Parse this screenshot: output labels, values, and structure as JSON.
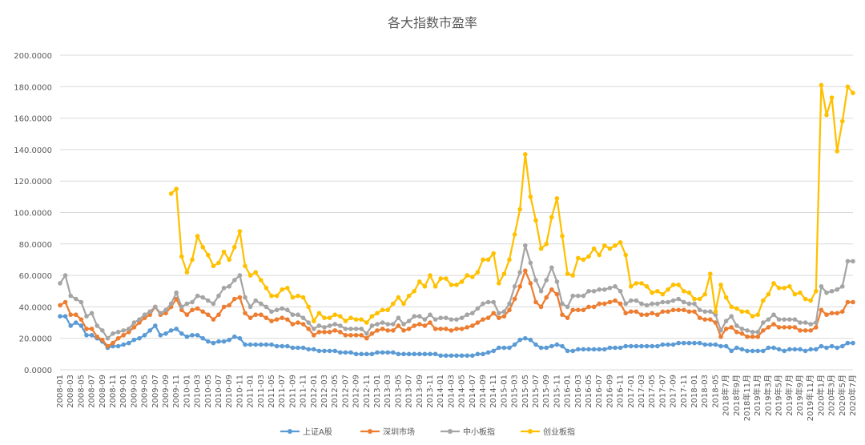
{
  "chart_data": {
    "type": "line",
    "title": "各大指数市盈率",
    "categories": [
      "2008-01",
      null,
      "2008-03",
      null,
      "2008-05",
      null,
      "2008-07",
      null,
      "2008-09",
      null,
      "2008-11",
      null,
      "2009-01",
      null,
      "2009-03",
      null,
      "2009-05",
      null,
      "2009-07",
      null,
      "2009-09",
      null,
      "2009-11",
      null,
      "2010-01",
      null,
      "2010-03",
      null,
      "2010-05",
      null,
      "2010-07",
      null,
      "2010-09",
      null,
      "2010-11",
      null,
      "2011-01",
      null,
      "2011-03",
      null,
      "2011-05",
      null,
      "2011-07",
      null,
      "2011-09",
      null,
      "2011-11",
      null,
      "2012-01",
      null,
      "2012-03",
      null,
      "2012-05",
      null,
      "2012-07",
      null,
      "2012-09",
      null,
      "2012-11",
      null,
      "2013-01",
      null,
      "2013-03",
      null,
      "2013-05",
      null,
      "2013-07",
      null,
      "2013-09",
      null,
      "2013-11",
      null,
      "2014-01",
      null,
      "2014-03",
      null,
      "2014-05",
      null,
      "2014-07",
      null,
      "2014-09",
      null,
      "2014-11",
      null,
      "2015-01",
      null,
      "2015-03",
      null,
      "2015-05",
      null,
      "2015-07",
      null,
      "2015-09",
      null,
      "2015-11",
      null,
      "2016-01",
      null,
      "2016-03",
      null,
      "2016-05",
      null,
      "2016-07",
      null,
      "2016-09",
      null,
      "2016-11",
      null,
      "2017-01",
      null,
      "2017-03",
      null,
      "2017-05",
      null,
      "2017-07",
      null,
      "2017-09",
      null,
      "2017-11",
      null,
      "2018-01",
      null,
      "2018-03",
      null,
      "2018-05",
      null,
      "2018年7月",
      null,
      "2018年9月",
      null,
      "2018年11月",
      null,
      "2019年1月",
      null,
      "2019年3月",
      null,
      "2019年5月",
      null,
      "2019年7月",
      null,
      "2019年9月",
      null,
      "2019年11月",
      null,
      "2020年1月",
      null,
      "2020年3月",
      null,
      "2020年5月",
      null,
      "2020年7月"
    ],
    "series": [
      {
        "name": "上证A股",
        "color": "#5b9bd5",
        "values": [
          34,
          34,
          28,
          30,
          28,
          22,
          22,
          20,
          18,
          14,
          15,
          15,
          16,
          17,
          19,
          20,
          22,
          25,
          28,
          22,
          23,
          25,
          26,
          23,
          21,
          22,
          22,
          20,
          18,
          17,
          18,
          18,
          19,
          21,
          20,
          16,
          16,
          16,
          16,
          16,
          16,
          15,
          15,
          15,
          14,
          14,
          14,
          13,
          13,
          12,
          12,
          12,
          12,
          11,
          11,
          11,
          10,
          10,
          10,
          10,
          11,
          11,
          11,
          11,
          10,
          10,
          10,
          10,
          10,
          10,
          10,
          10,
          9,
          9,
          9,
          9,
          9,
          9,
          9,
          10,
          10,
          11,
          12,
          14,
          14,
          14,
          16,
          19,
          20,
          19,
          16,
          14,
          14,
          15,
          16,
          15,
          12,
          12,
          13,
          13,
          13,
          13,
          13,
          13,
          14,
          14,
          14,
          15,
          15,
          15,
          15,
          15,
          15,
          15,
          16,
          16,
          16,
          17,
          17,
          17,
          17,
          17,
          16,
          16,
          16,
          15,
          15,
          12,
          14,
          13,
          12,
          12,
          12,
          12,
          14,
          14,
          13,
          12,
          13,
          13,
          13,
          12,
          13,
          13,
          15,
          14,
          15,
          14,
          15,
          17,
          17
        ]
      },
      {
        "name": "深圳市场",
        "color": "#ed7d31",
        "values": [
          41,
          43,
          35,
          35,
          32,
          26,
          26,
          21,
          19,
          15,
          17,
          20,
          22,
          24,
          27,
          30,
          33,
          35,
          40,
          35,
          36,
          40,
          45,
          38,
          35,
          38,
          39,
          37,
          35,
          32,
          35,
          40,
          41,
          45,
          46,
          36,
          33,
          35,
          35,
          33,
          31,
          32,
          33,
          32,
          29,
          30,
          29,
          26,
          22,
          24,
          24,
          24,
          25,
          24,
          22,
          22,
          22,
          22,
          20,
          23,
          25,
          26,
          25,
          25,
          28,
          25,
          26,
          28,
          29,
          28,
          30,
          26,
          26,
          26,
          25,
          26,
          26,
          27,
          28,
          30,
          32,
          33,
          36,
          33,
          34,
          38,
          45,
          53,
          63,
          55,
          43,
          40,
          46,
          51,
          48,
          35,
          33,
          38,
          38,
          38,
          40,
          40,
          42,
          42,
          43,
          44,
          42,
          36,
          37,
          37,
          35,
          35,
          36,
          35,
          37,
          37,
          38,
          38,
          38,
          37,
          37,
          33,
          32,
          32,
          30,
          21,
          26,
          27,
          24,
          23,
          21,
          21,
          21,
          25,
          27,
          29,
          27,
          27,
          27,
          27,
          25,
          25,
          25,
          27,
          38,
          35,
          36,
          36,
          37,
          43,
          43
        ]
      },
      {
        "name": "中小板指",
        "color": "#a5a5a5",
        "values": [
          55,
          60,
          47,
          45,
          43,
          34,
          36,
          28,
          25,
          20,
          23,
          24,
          25,
          26,
          30,
          32,
          35,
          37,
          40,
          36,
          38,
          42,
          49,
          40,
          42,
          43,
          47,
          46,
          44,
          42,
          47,
          52,
          53,
          57,
          60,
          46,
          40,
          44,
          42,
          40,
          37,
          38,
          39,
          38,
          35,
          35,
          33,
          30,
          26,
          28,
          27,
          28,
          29,
          28,
          26,
          26,
          26,
          26,
          23,
          28,
          29,
          30,
          29,
          29,
          33,
          29,
          31,
          34,
          34,
          32,
          35,
          32,
          33,
          33,
          32,
          32,
          33,
          35,
          36,
          39,
          42,
          43,
          43,
          36,
          37,
          42,
          53,
          62,
          79,
          68,
          57,
          50,
          57,
          65,
          56,
          42,
          40,
          47,
          47,
          47,
          50,
          50,
          51,
          51,
          52,
          53,
          50,
          42,
          44,
          44,
          42,
          41,
          42,
          42,
          43,
          43,
          44,
          45,
          43,
          42,
          42,
          38,
          37,
          37,
          35,
          25,
          31,
          34,
          28,
          26,
          25,
          24,
          24,
          30,
          32,
          35,
          32,
          32,
          32,
          32,
          30,
          30,
          29,
          30,
          53,
          49,
          50,
          51,
          53,
          69,
          69
        ]
      },
      {
        "name": "创业板指",
        "color": "#ffc000",
        "values": [
          null,
          null,
          null,
          null,
          null,
          null,
          null,
          null,
          null,
          null,
          null,
          null,
          null,
          null,
          null,
          null,
          null,
          null,
          null,
          null,
          null,
          112,
          115,
          72,
          62,
          70,
          85,
          78,
          73,
          66,
          68,
          75,
          70,
          78,
          88,
          66,
          60,
          62,
          57,
          52,
          47,
          47,
          51,
          52,
          46,
          47,
          46,
          40,
          31,
          36,
          33,
          33,
          35,
          34,
          31,
          33,
          32,
          32,
          30,
          34,
          36,
          38,
          38,
          42,
          46,
          42,
          47,
          50,
          56,
          53,
          60,
          53,
          58,
          58,
          54,
          54,
          56,
          60,
          59,
          62,
          70,
          70,
          74,
          55,
          61,
          70,
          86,
          102,
          137,
          110,
          95,
          77,
          80,
          97,
          109,
          85,
          61,
          60,
          71,
          70,
          72,
          77,
          73,
          79,
          77,
          79,
          81,
          73,
          53,
          55,
          55,
          53,
          49,
          50,
          48,
          51,
          54,
          54,
          50,
          49,
          45,
          45,
          48,
          61,
          37,
          54,
          46,
          40,
          39,
          37,
          37,
          34,
          35,
          44,
          48,
          55,
          52,
          52,
          53,
          48,
          49,
          45,
          44,
          50,
          181,
          162,
          173,
          139,
          158,
          180,
          176
        ]
      }
    ],
    "ylim": [
      0,
      200
    ],
    "yticks": [
      {
        "value": 0,
        "label": "0.0000"
      },
      {
        "value": 20,
        "label": "20.0000"
      },
      {
        "value": 40,
        "label": "40.0000"
      },
      {
        "value": 60,
        "label": "60.0000"
      },
      {
        "value": 80,
        "label": "80.0000"
      },
      {
        "value": 100,
        "label": "100.0000"
      },
      {
        "value": 120,
        "label": "120.0000"
      },
      {
        "value": 140,
        "label": "140.0000"
      },
      {
        "value": 160,
        "label": "160.0000"
      },
      {
        "value": 180,
        "label": "180.0000"
      },
      {
        "value": 200,
        "label": "200.0000"
      }
    ],
    "grid": true,
    "legend": "bottom"
  }
}
